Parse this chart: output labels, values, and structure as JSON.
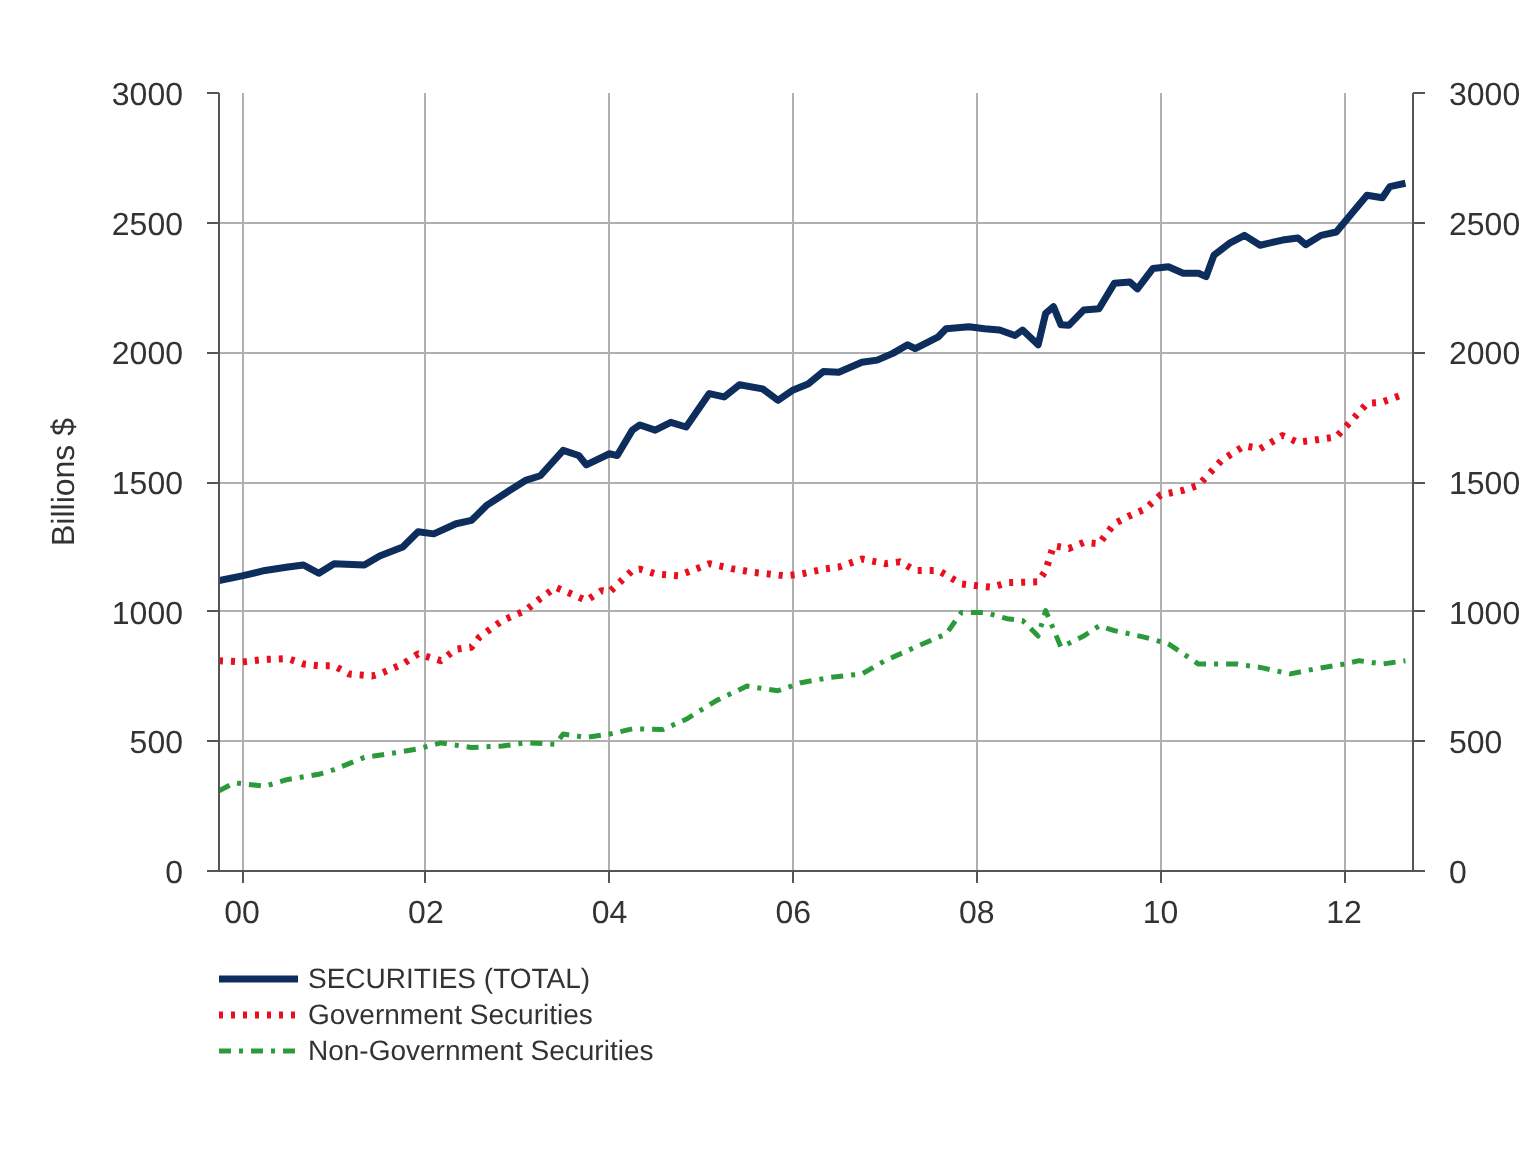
{
  "chart_data": {
    "type": "line",
    "ylabel": "Billions $",
    "xlim": [
      "1999-10",
      "2012-10"
    ],
    "xticks": [
      {
        "value": "2000-01",
        "label": "00"
      },
      {
        "value": "2002-01",
        "label": "02"
      },
      {
        "value": "2004-01",
        "label": "04"
      },
      {
        "value": "2006-01",
        "label": "06"
      },
      {
        "value": "2008-01",
        "label": "08"
      },
      {
        "value": "2010-01",
        "label": "10"
      },
      {
        "value": "2012-01",
        "label": "12"
      }
    ],
    "ylim": [
      0,
      3000
    ],
    "yticks": [
      0,
      500,
      1000,
      1500,
      2000,
      2500,
      3000
    ],
    "y2lim": [
      0,
      3000
    ],
    "y2ticks": [
      0,
      500,
      1000,
      1500,
      2000,
      2500,
      3000
    ],
    "grid": true,
    "legend": "bottom left",
    "series": [
      {
        "name": "SECURITIES (TOTAL)",
        "color": "#0d2d5c",
        "line_style": "solid",
        "x": [
          "1999-10",
          "2000-01",
          "2000-04",
          "2000-07",
          "2000-09",
          "2000-11",
          "2001-01",
          "2001-05",
          "2001-07",
          "2001-10",
          "2001-12",
          "2002-02",
          "2002-05",
          "2002-07",
          "2002-09",
          "2002-12",
          "2003-02",
          "2003-04",
          "2003-07",
          "2003-09",
          "2003-10",
          "2004-01",
          "2004-02",
          "2004-04",
          "2004-05",
          "2004-07",
          "2004-09",
          "2004-11",
          "2005-02",
          "2005-04",
          "2005-06",
          "2005-09",
          "2005-11",
          "2006-01",
          "2006-03",
          "2006-05",
          "2006-07",
          "2006-10",
          "2006-12",
          "2007-02",
          "2007-04",
          "2007-05",
          "2007-08",
          "2007-09",
          "2007-12",
          "2008-02",
          "2008-04",
          "2008-06",
          "2008-07",
          "2008-09",
          "2008-10",
          "2008-11",
          "2008-12",
          "2009-01",
          "2009-03",
          "2009-05",
          "2009-07",
          "2009-09",
          "2009-10",
          "2009-12",
          "2010-02",
          "2010-04",
          "2010-06",
          "2010-07",
          "2010-08",
          "2010-10",
          "2010-12",
          "2011-02",
          "2011-05",
          "2011-07",
          "2011-08",
          "2011-10",
          "2011-12",
          "2012-02",
          "2012-04",
          "2012-06",
          "2012-07",
          "2012-09"
        ],
        "values": [
          1120,
          1138,
          1159,
          1172,
          1180,
          1148,
          1185,
          1180,
          1215,
          1249,
          1308,
          1300,
          1339,
          1352,
          1411,
          1468,
          1506,
          1524,
          1622,
          1602,
          1566,
          1609,
          1602,
          1700,
          1720,
          1700,
          1730,
          1712,
          1841,
          1828,
          1875,
          1859,
          1815,
          1855,
          1878,
          1926,
          1923,
          1962,
          1970,
          1996,
          2029,
          2014,
          2060,
          2091,
          2099,
          2091,
          2086,
          2065,
          2086,
          2029,
          2150,
          2176,
          2106,
          2104,
          2163,
          2168,
          2266,
          2271,
          2245,
          2323,
          2330,
          2305,
          2305,
          2292,
          2374,
          2420,
          2451,
          2413,
          2433,
          2441,
          2415,
          2451,
          2464,
          2536,
          2606,
          2596,
          2639,
          2652
        ]
      },
      {
        "name": "Government Securities",
        "color": "#e8101f",
        "line_style": "dotted",
        "x": [
          "1999-10",
          "2000-01",
          "2000-04",
          "2000-07",
          "2000-09",
          "2000-11",
          "2001-01",
          "2001-03",
          "2001-06",
          "2001-07",
          "2001-10",
          "2001-12",
          "2002-03",
          "2002-05",
          "2002-07",
          "2002-08",
          "2002-11",
          "2003-02",
          "2003-04",
          "2003-06",
          "2003-08",
          "2003-10",
          "2003-12",
          "2004-01",
          "2004-04",
          "2004-05",
          "2004-07",
          "2004-10",
          "2005-02",
          "2005-05",
          "2005-08",
          "2005-12",
          "2006-02",
          "2006-05",
          "2006-07",
          "2006-10",
          "2007-01",
          "2007-03",
          "2007-05",
          "2007-08",
          "2007-11",
          "2008-01",
          "2008-03",
          "2008-05",
          "2008-09",
          "2008-10",
          "2008-11",
          "2009-01",
          "2009-03",
          "2009-05",
          "2009-07",
          "2009-09",
          "2009-11",
          "2010-01",
          "2010-04",
          "2010-06",
          "2010-07",
          "2010-09",
          "2010-12",
          "2011-02",
          "2011-05",
          "2011-07",
          "2011-09",
          "2011-12",
          "2012-02",
          "2012-04",
          "2012-06",
          "2012-09"
        ],
        "values": [
          811,
          806,
          816,
          819,
          798,
          791,
          791,
          760,
          752,
          760,
          798,
          837,
          811,
          855,
          863,
          901,
          966,
          1004,
          1051,
          1094,
          1069,
          1043,
          1081,
          1076,
          1159,
          1164,
          1146,
          1138,
          1185,
          1166,
          1151,
          1138,
          1145,
          1164,
          1172,
          1203,
          1185,
          1192,
          1159,
          1159,
          1107,
          1100,
          1094,
          1112,
          1115,
          1159,
          1254,
          1244,
          1267,
          1262,
          1339,
          1370,
          1396,
          1450,
          1468,
          1488,
          1519,
          1584,
          1640,
          1628,
          1679,
          1653,
          1661,
          1674,
          1738,
          1803,
          1808,
          1841
        ]
      },
      {
        "name": "Non-Government Securities",
        "color": "#2a9a3a",
        "line_style": "dashdot",
        "x": [
          "1999-10",
          "1999-12",
          "2000-04",
          "2000-07",
          "2000-11",
          "2001-01",
          "2001-05",
          "2001-09",
          "2001-12",
          "2002-03",
          "2002-07",
          "2002-11",
          "2003-02",
          "2003-06",
          "2003-07",
          "2003-10",
          "2004-01",
          "2004-04",
          "2004-08",
          "2004-11",
          "2005-03",
          "2005-07",
          "2005-11",
          "2006-02",
          "2006-06",
          "2006-10",
          "2007-01",
          "2007-05",
          "2007-09",
          "2007-11",
          "2008-02",
          "2008-05",
          "2008-07",
          "2008-09",
          "2008-10",
          "2008-12",
          "2009-03",
          "2009-05",
          "2009-07",
          "2009-11",
          "2010-02",
          "2010-06",
          "2010-11",
          "2011-02",
          "2011-06",
          "2011-09",
          "2012-01",
          "2012-03",
          "2012-06",
          "2012-09"
        ],
        "values": [
          309,
          340,
          327,
          353,
          373,
          391,
          438,
          456,
          471,
          494,
          476,
          482,
          494,
          489,
          528,
          515,
          528,
          548,
          546,
          585,
          657,
          713,
          695,
          726,
          747,
          760,
          811,
          863,
          914,
          997,
          997,
          973,
          966,
          906,
          1004,
          863,
          906,
          945,
          927,
          901,
          876,
          798,
          798,
          785,
          760,
          778,
          798,
          811,
          798,
          811
        ]
      }
    ]
  }
}
